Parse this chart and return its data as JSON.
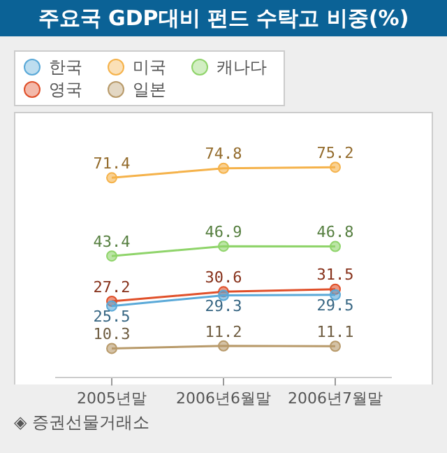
{
  "chart_data": {
    "type": "line",
    "title": "주요국 GDP대비 펀드 수탁고 비중(%)",
    "categories": [
      "2005년말",
      "2006년6월말",
      "2006년7월말"
    ],
    "series": [
      {
        "name": "한국",
        "color": "#5aa9d8",
        "values": [
          25.5,
          29.3,
          29.5
        ]
      },
      {
        "name": "미국",
        "color": "#f5b24a",
        "values": [
          71.4,
          74.8,
          75.2
        ]
      },
      {
        "name": "캐나다",
        "color": "#8fd46a",
        "values": [
          43.4,
          46.9,
          46.8
        ]
      },
      {
        "name": "영국",
        "color": "#e0502a",
        "values": [
          27.2,
          30.6,
          31.5
        ]
      },
      {
        "name": "일본",
        "color": "#b89a6a",
        "values": [
          10.3,
          11.2,
          11.1
        ]
      }
    ],
    "data_labels": true,
    "legend": "top left",
    "marker": "circle",
    "grid": false,
    "tick_labels": "x",
    "annotations": [
      "◈ 증권선물거래소"
    ]
  }
}
